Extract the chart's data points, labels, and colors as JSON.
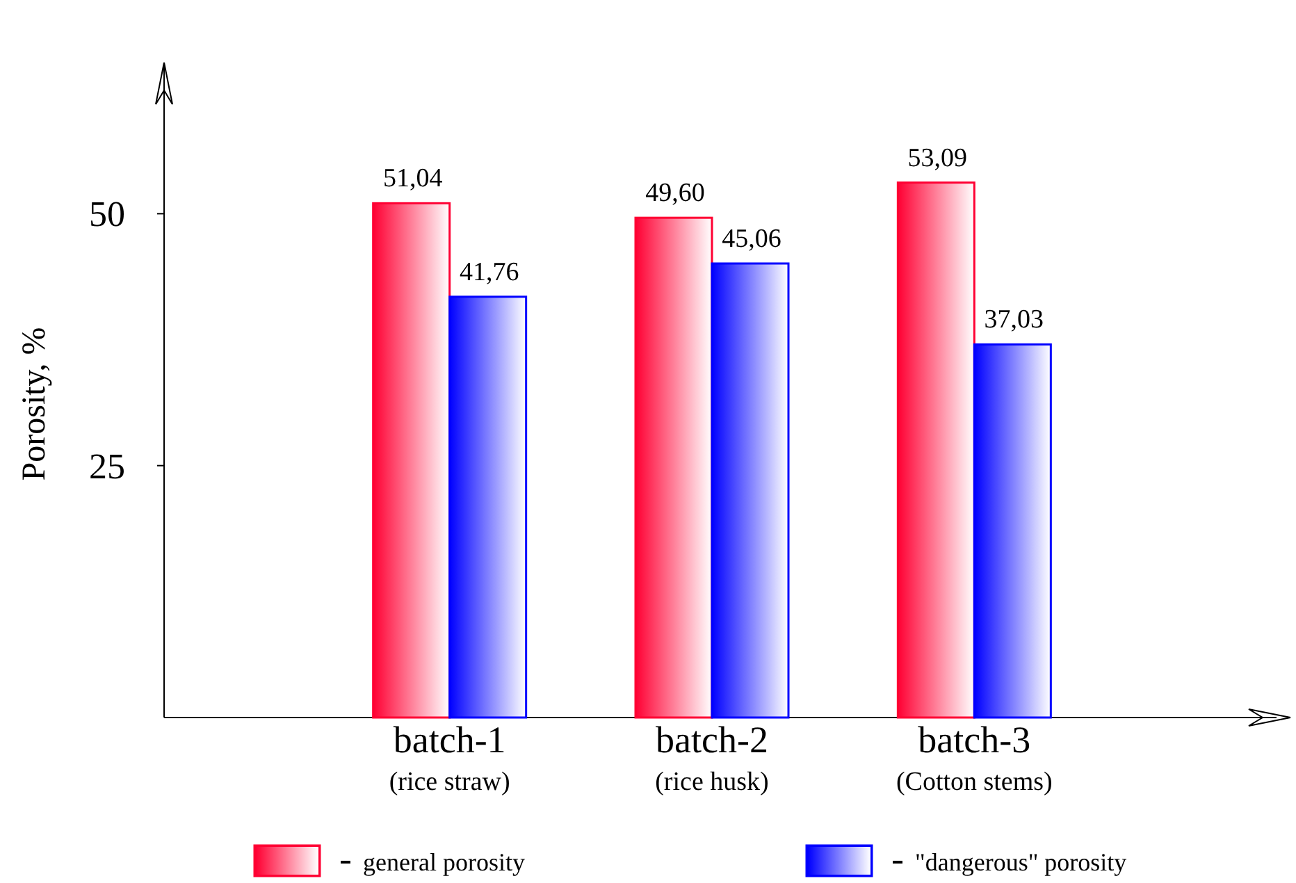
{
  "chart_data": {
    "type": "bar",
    "ylabel": "Porosity, %",
    "categories": [
      "batch-1\n(rice straw)",
      "batch-2\n(rice husk)",
      "batch-3\n(Cotton stems)"
    ],
    "series": [
      {
        "name": "general porosity",
        "color": "#ff0033",
        "values": [
          51.04,
          49.6,
          53.09
        ],
        "value_labels": [
          "51,04",
          "49,60",
          "53,09"
        ]
      },
      {
        "name": "\"dangerous\" porosity",
        "color": "#0000ff",
        "values": [
          41.76,
          45.06,
          37.03
        ],
        "value_labels": [
          "41,76",
          "45,06",
          "37,03"
        ]
      }
    ],
    "ylim": [
      0,
      65
    ],
    "yticks": [
      25,
      50
    ],
    "legend": "bottom"
  }
}
